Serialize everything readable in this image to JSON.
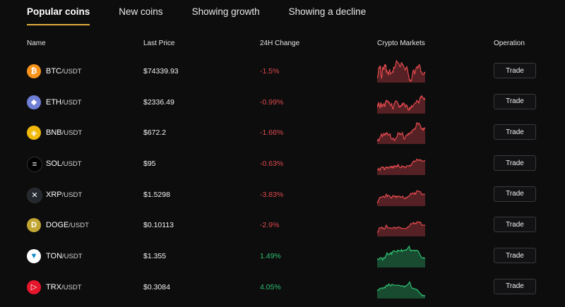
{
  "tabs": [
    {
      "label": "Popular coins",
      "active": true
    },
    {
      "label": "New coins",
      "active": false
    },
    {
      "label": "Showing growth",
      "active": false
    },
    {
      "label": "Showing a decline",
      "active": false
    }
  ],
  "columns": {
    "name": "Name",
    "price": "Last Price",
    "change": "24H Change",
    "chart": "Crypto Markets",
    "operation": "Operation"
  },
  "colors": {
    "accent": "#e3ad3c",
    "down": "#e0494d",
    "up": "#2fbf71"
  },
  "rows": [
    {
      "symbol": "BTC",
      "quote": "/USDT",
      "price": "$74339.93",
      "change": "-1.5%",
      "trend": "down",
      "icon": "btc-icon",
      "icon_color": "#f7931a",
      "icon_glyph": "₿",
      "spark": [
        9,
        7,
        10,
        20,
        22,
        21,
        24,
        23,
        10,
        6,
        8,
        21,
        22,
        20,
        18,
        25,
        26,
        23,
        26,
        14,
        18,
        14,
        14,
        10,
        14,
        17,
        19,
        12,
        12,
        13,
        14,
        14,
        16,
        15,
        22,
        22,
        21,
        23,
        26,
        29,
        32,
        30,
        30,
        29,
        28,
        27,
        24,
        23,
        23,
        26,
        29,
        29,
        26,
        26,
        25,
        22,
        21,
        20,
        18,
        19,
        22,
        23,
        21,
        17,
        12,
        10,
        4,
        2,
        3,
        2,
        1,
        4,
        7,
        13,
        17,
        18,
        17,
        12,
        13,
        17,
        20,
        22,
        22,
        23,
        21,
        24,
        25,
        26,
        25,
        22,
        15,
        15,
        15,
        12,
        11,
        11,
        12,
        14,
        13,
        15
      ]
    },
    {
      "symbol": "ETH",
      "quote": "/USDT",
      "price": "$2336.49",
      "change": "-0.99%",
      "trend": "down",
      "icon": "eth-icon",
      "icon_color": "#6f7fd6",
      "icon_glyph": "◆",
      "spark": [
        8,
        12,
        11,
        16,
        14,
        9,
        8,
        13,
        16,
        10,
        9,
        12,
        11,
        13,
        14,
        11,
        9,
        16,
        18,
        19,
        17,
        18,
        18,
        17,
        15,
        16,
        14,
        12,
        11,
        12,
        14,
        10,
        6,
        6,
        9,
        14,
        14,
        17,
        18,
        18,
        18,
        17,
        16,
        14,
        13,
        9,
        10,
        9,
        11,
        10,
        11,
        13,
        14,
        12,
        15,
        15,
        14,
        12,
        9,
        10,
        12,
        12,
        10,
        7,
        4,
        4,
        6,
        9,
        6,
        8,
        8,
        11,
        9,
        9,
        11,
        12,
        13,
        14,
        15,
        15,
        15,
        18,
        19,
        18,
        17,
        17,
        15,
        18,
        21,
        24,
        23,
        25,
        26,
        24,
        24,
        22,
        21,
        20,
        22,
        20
      ]
    },
    {
      "symbol": "BNB",
      "quote": "/USDT",
      "price": "$672.2",
      "change": "-1.66%",
      "trend": "down",
      "icon": "bnb-icon",
      "icon_color": "#f0b90b",
      "icon_glyph": "◈",
      "spark": [
        3,
        5,
        6,
        4,
        4,
        7,
        9,
        10,
        12,
        14,
        12,
        10,
        12,
        14,
        15,
        13,
        12,
        15,
        15,
        14,
        16,
        16,
        13,
        12,
        13,
        13,
        14,
        14,
        10,
        7,
        6,
        6,
        7,
        8,
        6,
        6,
        4,
        5,
        7,
        8,
        9,
        10,
        13,
        16,
        15,
        15,
        14,
        15,
        13,
        13,
        14,
        14,
        16,
        13,
        11,
        7,
        6,
        7,
        9,
        11,
        12,
        12,
        12,
        14,
        13,
        15,
        14,
        14,
        15,
        17,
        17,
        16,
        19,
        19,
        21,
        21,
        21,
        22,
        21,
        24,
        25,
        29,
        31,
        30,
        30,
        29,
        30,
        30,
        28,
        27,
        25,
        22,
        22,
        21,
        22,
        19,
        23,
        23,
        22,
        24
      ]
    },
    {
      "symbol": "SOL",
      "quote": "/USDT",
      "price": "$95",
      "change": "-0.63%",
      "trend": "down",
      "icon": "sol-icon",
      "icon_color": "#000000",
      "icon_glyph": "≡",
      "spark": [
        7,
        7,
        7,
        9,
        8,
        7,
        6,
        9,
        10,
        11,
        11,
        10,
        10,
        11,
        10,
        7,
        7,
        10,
        11,
        11,
        10,
        11,
        10,
        10,
        9,
        11,
        11,
        12,
        11,
        12,
        10,
        11,
        10,
        12,
        10,
        12,
        13,
        13,
        12,
        11,
        13,
        13,
        12,
        15,
        14,
        12,
        11,
        11,
        10,
        10,
        11,
        13,
        12,
        12,
        11,
        11,
        12,
        11,
        10,
        11,
        11,
        13,
        13,
        13,
        13,
        13,
        12,
        13,
        14,
        13,
        13,
        15,
        17,
        18,
        19,
        20,
        19,
        20,
        20,
        20,
        20,
        22,
        23,
        22,
        22,
        21,
        21,
        22,
        21,
        22,
        22,
        21,
        20,
        20,
        20,
        20,
        20,
        20,
        21,
        21
      ]
    },
    {
      "symbol": "XRP",
      "quote": "/USDT",
      "price": "$1.5298",
      "change": "-3.83%",
      "trend": "down",
      "icon": "xrp-icon",
      "icon_color": "#23292f",
      "icon_glyph": "✕",
      "spark": [
        6,
        4,
        6,
        8,
        10,
        12,
        12,
        12,
        12,
        13,
        13,
        13,
        13,
        14,
        13,
        12,
        12,
        14,
        16,
        17,
        16,
        13,
        14,
        15,
        15,
        15,
        14,
        12,
        12,
        12,
        11,
        13,
        14,
        15,
        14,
        14,
        13,
        14,
        14,
        12,
        12,
        14,
        13,
        13,
        14,
        14,
        14,
        13,
        12,
        13,
        13,
        13,
        13,
        14,
        12,
        11,
        10,
        10,
        11,
        12,
        11,
        11,
        13,
        13,
        13,
        14,
        14,
        15,
        17,
        18,
        17,
        17,
        18,
        19,
        18,
        18,
        17,
        19,
        19,
        17,
        18,
        21,
        22,
        22,
        22,
        21,
        21,
        21,
        21,
        21,
        20,
        17,
        17,
        17,
        16,
        17,
        17,
        17,
        17,
        17
      ]
    },
    {
      "symbol": "DOGE",
      "quote": "/USDT",
      "price": "$0.10113",
      "change": "-2.9%",
      "trend": "down",
      "icon": "doge-icon",
      "icon_color": "#c2a633",
      "icon_glyph": "D",
      "spark": [
        6,
        5,
        6,
        8,
        11,
        12,
        12,
        12,
        12,
        13,
        12,
        11,
        12,
        11,
        10,
        10,
        11,
        13,
        15,
        16,
        15,
        13,
        12,
        12,
        12,
        12,
        12,
        12,
        12,
        11,
        11,
        11,
        11,
        12,
        13,
        13,
        12,
        12,
        12,
        11,
        12,
        12,
        13,
        13,
        13,
        13,
        13,
        12,
        12,
        12,
        11,
        11,
        11,
        11,
        11,
        11,
        11,
        11,
        11,
        11,
        11,
        11,
        13,
        13,
        13,
        14,
        14,
        15,
        17,
        18,
        18,
        18,
        18,
        19,
        19,
        20,
        18,
        19,
        19,
        19,
        18,
        19,
        21,
        21,
        21,
        20,
        20,
        20,
        21,
        20,
        20,
        17,
        16,
        16,
        16,
        16,
        16,
        16,
        16,
        16
      ]
    },
    {
      "symbol": "TON",
      "quote": "/USDT",
      "price": "$1.355",
      "change": "1.49%",
      "trend": "up",
      "icon": "ton-icon",
      "icon_color": "#ffffff",
      "icon_glyph": "▼",
      "spark": [
        12,
        12,
        11,
        11,
        11,
        13,
        13,
        13,
        14,
        13,
        13,
        10,
        11,
        13,
        14,
        14,
        13,
        15,
        17,
        18,
        21,
        21,
        19,
        19,
        18,
        19,
        20,
        21,
        20,
        21,
        19,
        22,
        22,
        24,
        24,
        24,
        24,
        23,
        23,
        23,
        23,
        22,
        25,
        25,
        25,
        24,
        24,
        24,
        24,
        24,
        26,
        24,
        23,
        24,
        25,
        25,
        25,
        25,
        25,
        26,
        25,
        26,
        27,
        28,
        29,
        30,
        31,
        29,
        26,
        24,
        24,
        25,
        25,
        25,
        25,
        25,
        25,
        24,
        24,
        25,
        25,
        25,
        25,
        24,
        24,
        23,
        22,
        20,
        19,
        17,
        16,
        15,
        14,
        13,
        13,
        13,
        14,
        13,
        13,
        13
      ]
    },
    {
      "symbol": "TRX",
      "quote": "/USDT",
      "price": "$0.3084",
      "change": "4.05%",
      "trend": "up",
      "icon": "trx-icon",
      "icon_color": "#e4162b",
      "icon_glyph": "▷",
      "spark": [
        12,
        11,
        12,
        12,
        12,
        14,
        14,
        14,
        15,
        15,
        15,
        14,
        14,
        15,
        16,
        16,
        15,
        16,
        18,
        19,
        19,
        18,
        18,
        20,
        21,
        20,
        20,
        19,
        18,
        19,
        20,
        20,
        20,
        20,
        19,
        19,
        19,
        19,
        19,
        19,
        19,
        19,
        19,
        19,
        19,
        19,
        19,
        18,
        18,
        18,
        18,
        18,
        18,
        18,
        18,
        17,
        16,
        17,
        18,
        18,
        18,
        19,
        19,
        20,
        21,
        22,
        23,
        24,
        22,
        20,
        17,
        16,
        15,
        14,
        14,
        14,
        14,
        14,
        13,
        13,
        13,
        13,
        12,
        12,
        11,
        10,
        9,
        8,
        7,
        7,
        6,
        5,
        4,
        3,
        4,
        4,
        3,
        3,
        3,
        4
      ]
    }
  ],
  "trade_label": "Trade"
}
